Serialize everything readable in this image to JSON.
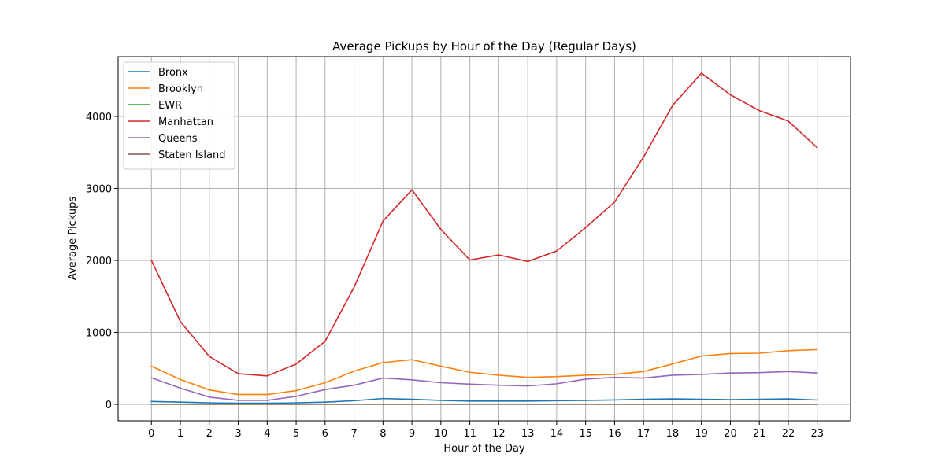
{
  "chart_data": {
    "type": "line",
    "title": "Average Pickups by Hour of the Day (Regular Days)",
    "xlabel": "Hour of the Day",
    "ylabel": "Average Pickups",
    "x": [
      0,
      1,
      2,
      3,
      4,
      5,
      6,
      7,
      8,
      9,
      10,
      11,
      12,
      13,
      14,
      15,
      16,
      17,
      18,
      19,
      20,
      21,
      22,
      23
    ],
    "x_tick_labels": [
      "0",
      "1",
      "2",
      "3",
      "4",
      "5",
      "6",
      "7",
      "8",
      "9",
      "10",
      "11",
      "12",
      "13",
      "14",
      "15",
      "16",
      "17",
      "18",
      "19",
      "20",
      "21",
      "22",
      "23"
    ],
    "xlim": [
      -1.15,
      24.15
    ],
    "ylim": [
      -230,
      4830
    ],
    "y_ticks": [
      0,
      1000,
      2000,
      3000,
      4000
    ],
    "y_tick_labels": [
      "0",
      "1000",
      "2000",
      "3000",
      "4000"
    ],
    "grid": true,
    "legend_position": "top-left",
    "series": [
      {
        "name": "Bronx",
        "color": "#1f77b4",
        "values": [
          40,
          30,
          20,
          15,
          15,
          20,
          30,
          50,
          80,
          70,
          55,
          45,
          45,
          45,
          50,
          55,
          60,
          70,
          75,
          70,
          65,
          70,
          75,
          60
        ]
      },
      {
        "name": "Brooklyn",
        "color": "#ff7f0e",
        "values": [
          530,
          345,
          200,
          135,
          135,
          190,
          300,
          460,
          580,
          620,
          530,
          445,
          405,
          375,
          385,
          405,
          415,
          455,
          560,
          670,
          705,
          710,
          745,
          760
        ]
      },
      {
        "name": "EWR",
        "color": "#2ca02c",
        "values": [
          1,
          1,
          1,
          1,
          1,
          1,
          1,
          1,
          1,
          1,
          1,
          1,
          1,
          1,
          1,
          1,
          1,
          1,
          1,
          1,
          1,
          1,
          1,
          1
        ]
      },
      {
        "name": "Manhattan",
        "color": "#d62728",
        "values": [
          2000,
          1150,
          665,
          425,
          395,
          560,
          875,
          1625,
          2545,
          2980,
          2430,
          2005,
          2075,
          1985,
          2130,
          2455,
          2810,
          3435,
          4150,
          4600,
          4300,
          4080,
          3935,
          3565
        ]
      },
      {
        "name": "Queens",
        "color": "#9467bd",
        "values": [
          370,
          225,
          100,
          55,
          55,
          110,
          205,
          265,
          365,
          340,
          300,
          280,
          265,
          255,
          285,
          350,
          375,
          365,
          405,
          415,
          435,
          440,
          455,
          435
        ]
      },
      {
        "name": "Staten Island",
        "color": "#8c564b",
        "values": [
          1,
          1,
          1,
          1,
          1,
          1,
          1,
          1,
          1,
          1,
          1,
          1,
          1,
          1,
          1,
          1,
          1,
          1,
          1,
          1,
          1,
          1,
          1,
          1
        ]
      }
    ]
  }
}
